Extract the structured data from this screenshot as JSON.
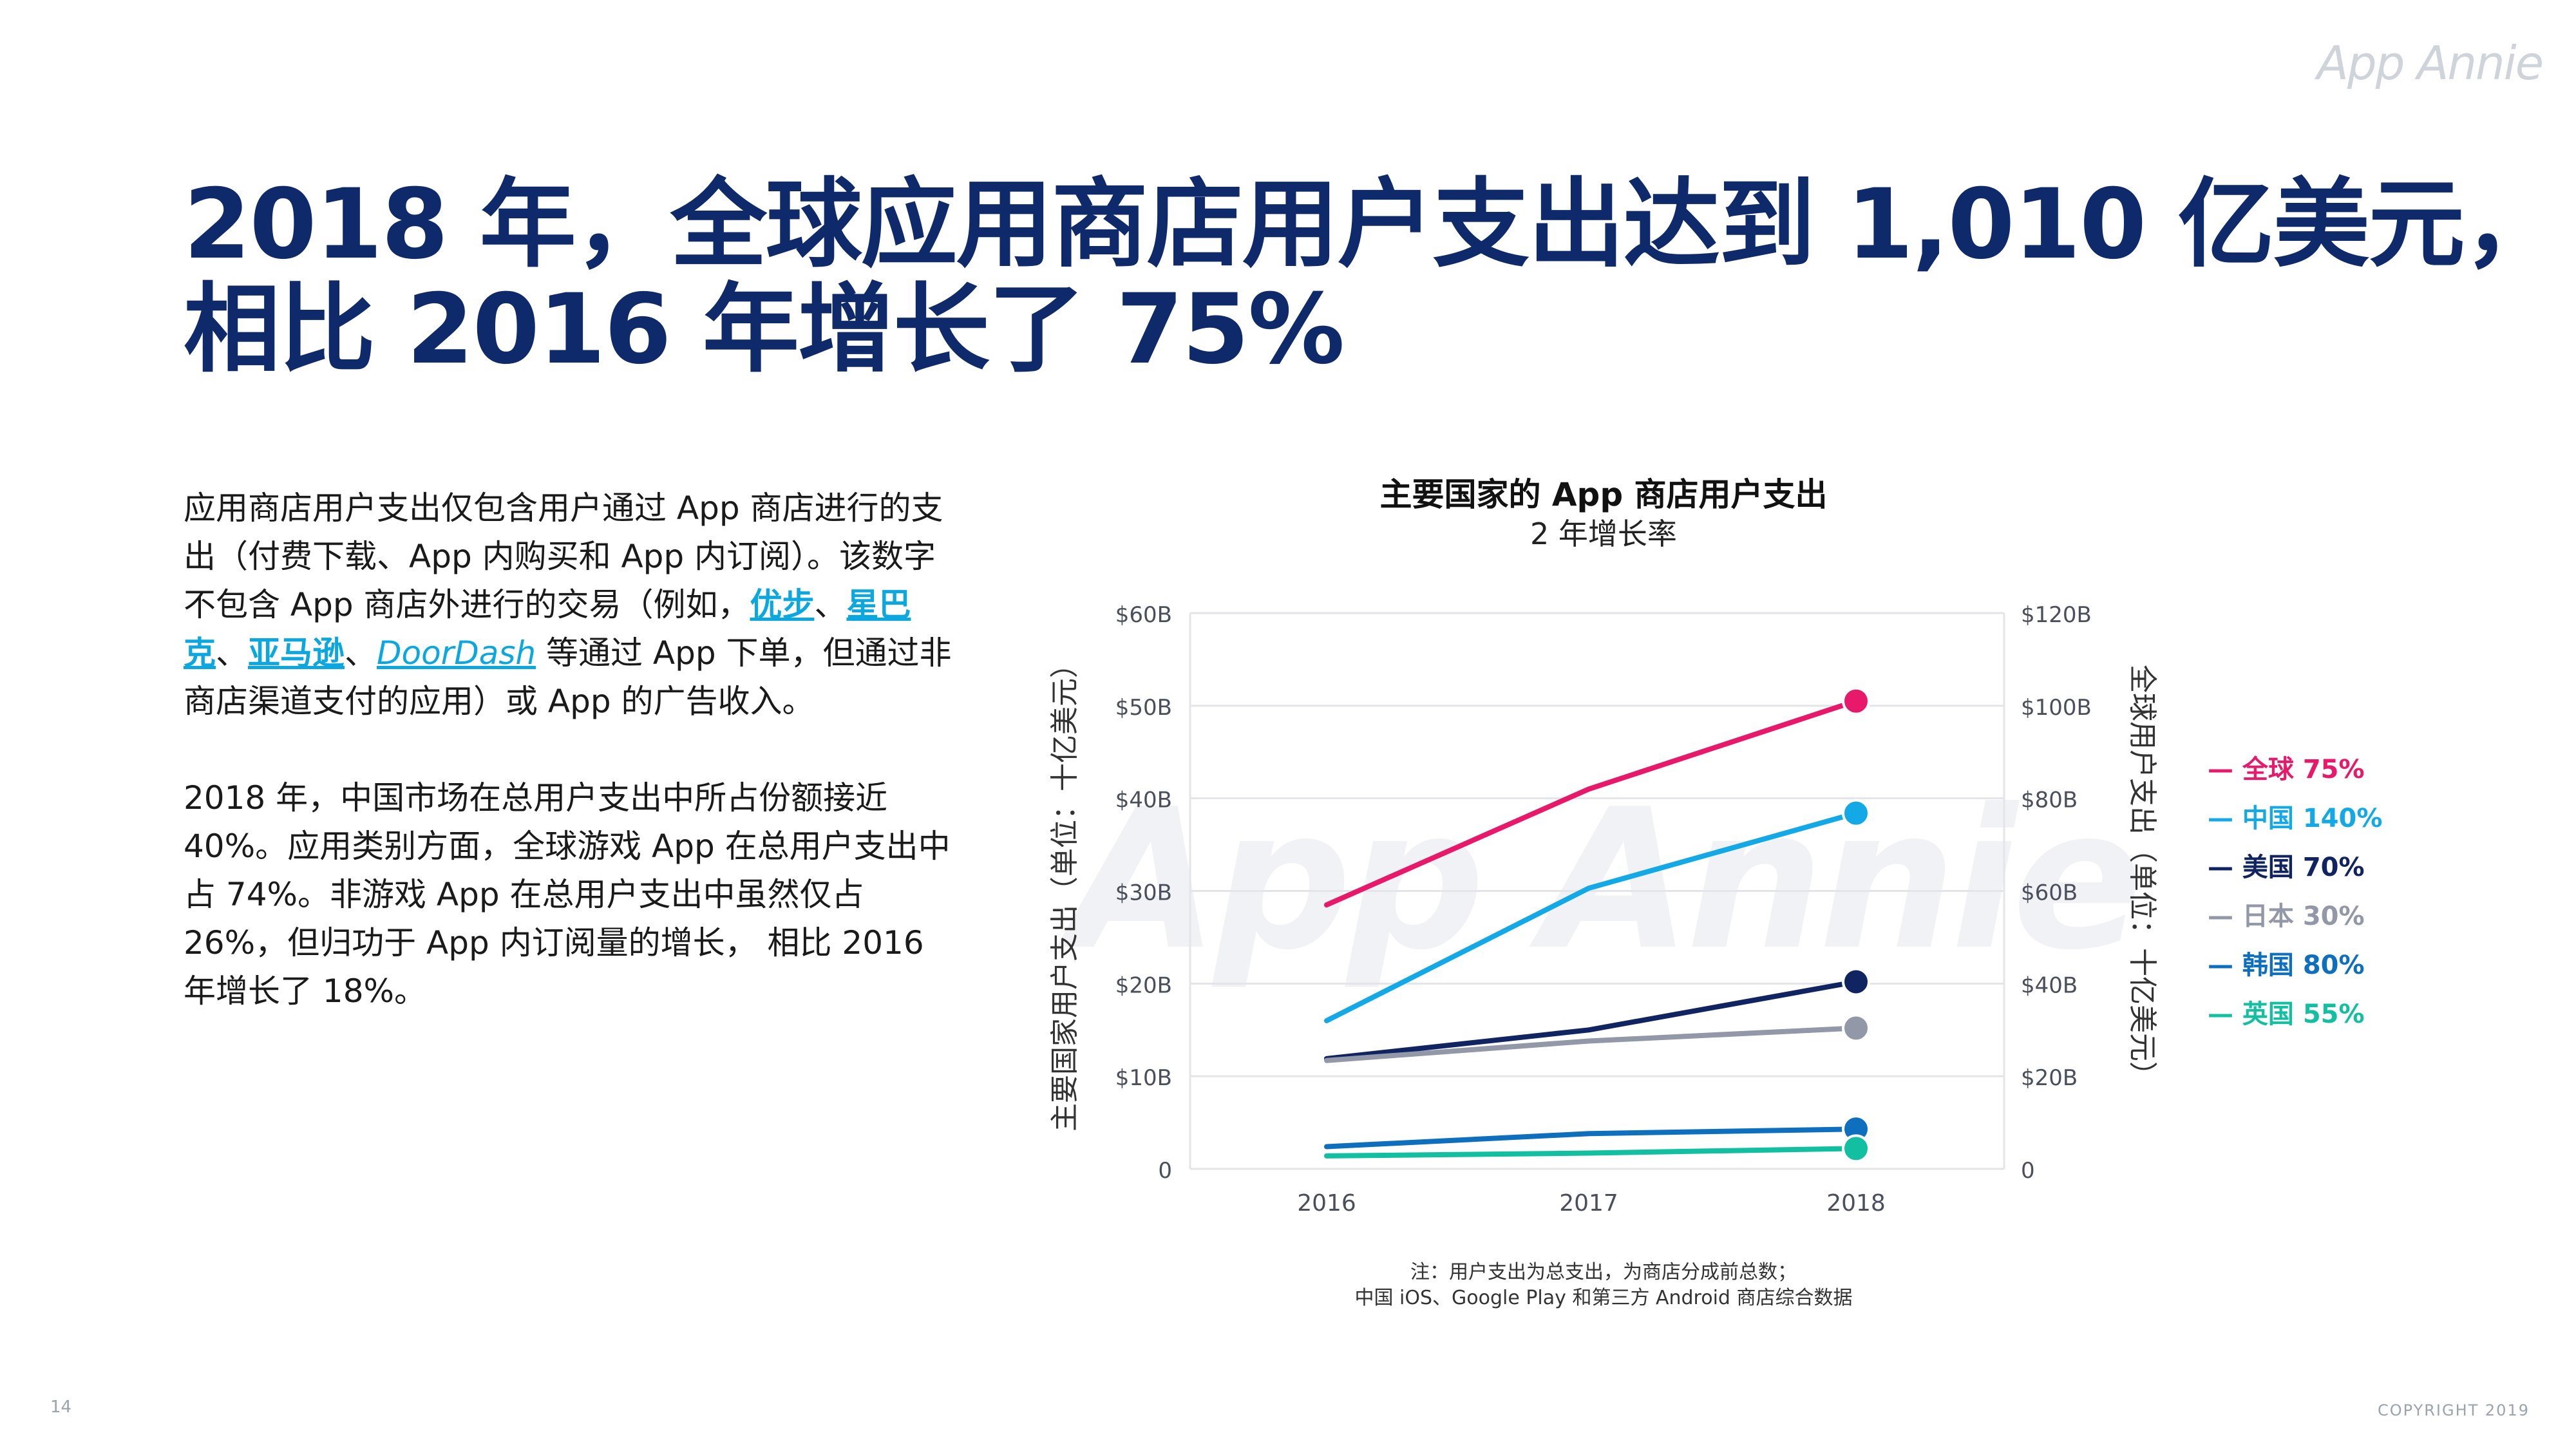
{
  "logo": "App Annie",
  "title": {
    "line1": "2018 年，全球应用商店用户支出达到 1,010 亿美元，",
    "line2": "相比 2016 年增长了 75%"
  },
  "body": {
    "p1_a": "应用商店用户支出仅包含用户通过 App 商店进行的支出（付费下载、App 内购买和 App 内订阅）。该数字不包含 App 商店外进行的交易（例如，",
    "link1": "优步",
    "sep1": "、",
    "link2": "星巴克",
    "sep2": "、",
    "link3": "亚马逊",
    "sep3": "、",
    "link4": "DoorDash",
    "p1_b": " 等通过 App 下单，但通过非商店渠道支付的应用）或 App 的广告收入。",
    "p2": "2018 年，中国市场在总用户支出中所占份额接近 40%。应用类别方面，全球游戏 App 在总用户支出中占 74%。非游戏 App 在总用户支出中虽然仅占 26%，但归功于 App 内订阅量的增长， 相比 2016 年增长了 18%。"
  },
  "chart_data": {
    "type": "line",
    "title": "主要国家的 App 商店用户支出",
    "subtitle": "2 年增长率",
    "watermark": "App Annie",
    "x": [
      "2016",
      "2017",
      "2018"
    ],
    "ylabel_left": "主要国家用户支出（单位：十亿美元）",
    "ylabel_right": "全球用户支出（单位：十亿美元）",
    "left_ticks": [
      "0",
      "$10B",
      "$20B",
      "$30B",
      "$40B",
      "$50B",
      "$60B"
    ],
    "right_ticks": [
      "0",
      "$20B",
      "$40B",
      "$60B",
      "$80B",
      "$100B",
      "$120B"
    ],
    "ylim_left": [
      0,
      60
    ],
    "ylim_right": [
      0,
      120
    ],
    "grid": true,
    "legend_position": "right",
    "series": [
      {
        "name": "全球",
        "growth": "75%",
        "axis": "right",
        "values": [
          57,
          82,
          101
        ],
        "color": "#e8196b"
      },
      {
        "name": "中国",
        "growth": "140%",
        "axis": "left",
        "values": [
          16,
          30.3,
          38.4
        ],
        "color": "#12a9e6"
      },
      {
        "name": "美国",
        "growth": "70%",
        "axis": "left",
        "values": [
          11.9,
          15,
          20.2
        ],
        "color": "#0f2461"
      },
      {
        "name": "日本",
        "growth": "30%",
        "axis": "left",
        "values": [
          11.7,
          13.8,
          15.2
        ],
        "color": "#9298a8"
      },
      {
        "name": "韩国",
        "growth": "80%",
        "axis": "left",
        "values": [
          2.4,
          3.8,
          4.3
        ],
        "color": "#0f6fbf"
      },
      {
        "name": "英国",
        "growth": "55%",
        "axis": "left",
        "values": [
          1.4,
          1.7,
          2.2
        ],
        "color": "#12bfa0"
      }
    ],
    "note_line1": "注：用户支出为总支出，为商店分成前总数；",
    "note_line2": "中国 iOS、Google Play 和第三方 Android 商店综合数据"
  },
  "footer": {
    "page_number": "14",
    "copyright": "COPYRIGHT 2019"
  }
}
